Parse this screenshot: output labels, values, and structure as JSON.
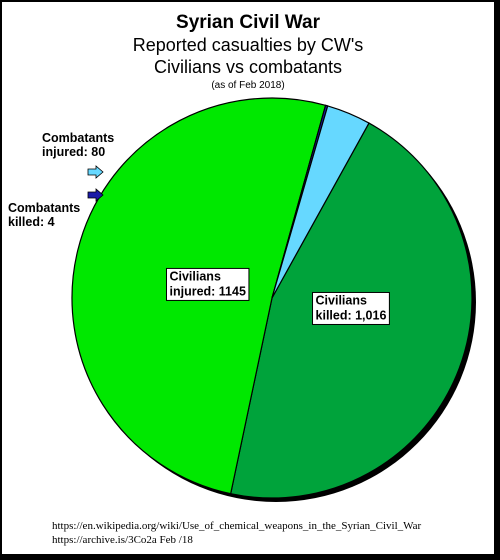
{
  "title": "Syrian Civil War",
  "subtitle_line1": "Reported casualties by CW's",
  "subtitle_line2": "Civilians vs combatants",
  "note": "(as of Feb 2018)",
  "sources": [
    "https://en.wikipedia.org/wiki/Use_of_chemical_weapons_in_the_Syrian_Civil_War",
    "https://archive.is/3Co2a  Feb /18"
  ],
  "chart_data": {
    "type": "pie",
    "slices": [
      {
        "label_lines": [
          "Civilians",
          "killed: 1,016"
        ],
        "value": 1016,
        "color": "#00a33b"
      },
      {
        "label_lines": [
          "Civilians",
          "injured: 1145"
        ],
        "value": 1145,
        "color": "#00e800"
      },
      {
        "label_lines": [
          "Combatants",
          "killed:  4"
        ],
        "value": 4,
        "color": "#1a1aa8"
      },
      {
        "label_lines": [
          "Combatants",
          "injured:  80"
        ],
        "value": 80,
        "color": "#66d8ff"
      }
    ]
  }
}
